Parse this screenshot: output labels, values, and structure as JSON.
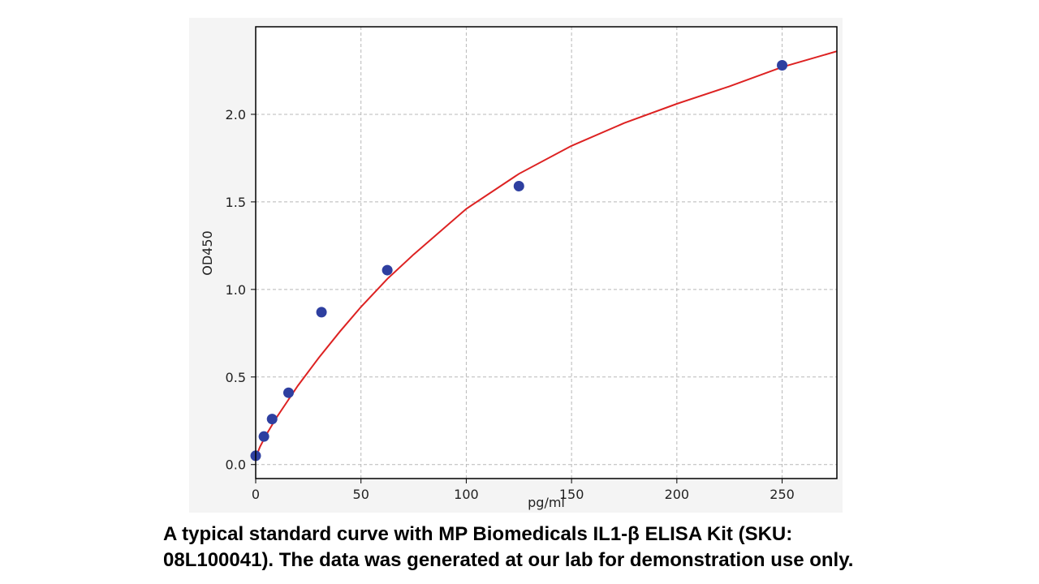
{
  "chart_data": {
    "type": "scatter",
    "xlabel": "pg/ml",
    "ylabel": "OD450",
    "xlim": [
      0,
      276
    ],
    "ylim": [
      -0.08,
      2.5
    ],
    "xticks": [
      0,
      50,
      100,
      150,
      200,
      250
    ],
    "yticks": [
      0.0,
      0.5,
      1.0,
      1.5,
      2.0
    ],
    "xtick_labels": [
      "0",
      "50",
      "100",
      "150",
      "200",
      "250"
    ],
    "ytick_labels": [
      "0.0",
      "0.5",
      "1.0",
      "1.5",
      "2.0"
    ],
    "grid": true,
    "points": {
      "color": "#2e3fa0",
      "x": [
        0,
        3.9,
        7.8,
        15.6,
        31.25,
        62.5,
        125,
        250
      ],
      "y": [
        0.05,
        0.16,
        0.26,
        0.41,
        0.87,
        1.11,
        1.59,
        2.28
      ]
    },
    "fit_curve": {
      "color": "#dd2222",
      "x": [
        0,
        2,
        5,
        10,
        15,
        20,
        30,
        40,
        50,
        62.5,
        75,
        100,
        125,
        150,
        175,
        200,
        225,
        250,
        276
      ],
      "y": [
        0.04,
        0.1,
        0.17,
        0.27,
        0.36,
        0.45,
        0.61,
        0.76,
        0.9,
        1.06,
        1.2,
        1.46,
        1.66,
        1.82,
        1.95,
        2.06,
        2.16,
        2.27,
        2.36
      ]
    }
  },
  "caption": {
    "line1": "A typical standard curve with MP Biomedicals IL1-β ELISA Kit (SKU:",
    "line2": "08L100041). The data was generated at our lab for demonstration use only."
  }
}
